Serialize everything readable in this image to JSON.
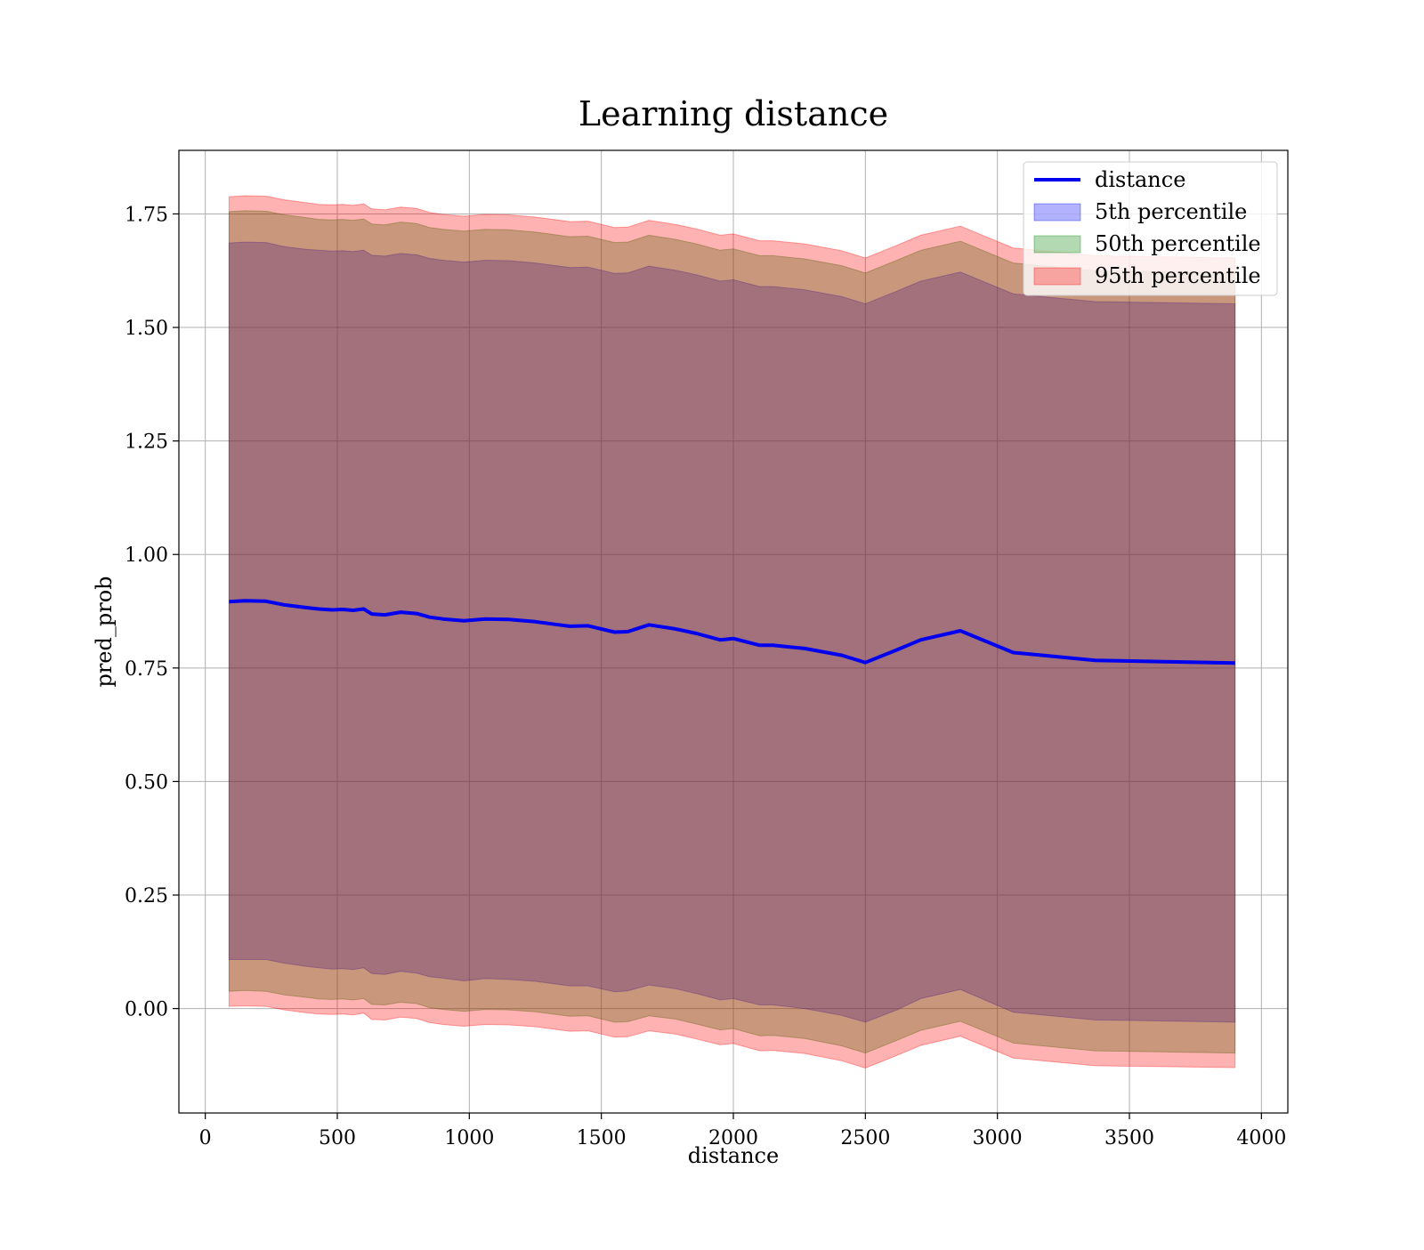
{
  "chart_data": {
    "type": "area",
    "title": "Learning distance",
    "xlabel": "distance",
    "ylabel": "pred_prob",
    "xlim": [
      -100,
      4100
    ],
    "ylim": [
      -0.23,
      1.89
    ],
    "xticks": [
      0,
      500,
      1000,
      1500,
      2000,
      2500,
      3000,
      3500,
      4000
    ],
    "xtick_labels": [
      "0",
      "500",
      "1000",
      "1500",
      "2000",
      "2500",
      "3000",
      "3500",
      "4000"
    ],
    "yticks": [
      0.0,
      0.25,
      0.5,
      0.75,
      1.0,
      1.25,
      1.5,
      1.75
    ],
    "ytick_labels": [
      "0.00",
      "0.25",
      "0.50",
      "0.75",
      "1.00",
      "1.25",
      "1.50",
      "1.75"
    ],
    "grid": true,
    "legend_position": "top-right",
    "x": [
      90,
      150,
      230,
      300,
      380,
      430,
      480,
      520,
      560,
      600,
      630,
      680,
      740,
      800,
      850,
      900,
      980,
      1060,
      1150,
      1250,
      1380,
      1450,
      1550,
      1600,
      1680,
      1780,
      1860,
      1950,
      2000,
      2100,
      2150,
      2270,
      2410,
      2500,
      2620,
      2710,
      2860,
      3060,
      3370,
      3900
    ],
    "series": [
      {
        "name": "distance",
        "kind": "line",
        "color": "#0000ee",
        "values": [
          0.896,
          0.898,
          0.897,
          0.889,
          0.883,
          0.88,
          0.878,
          0.879,
          0.877,
          0.88,
          0.869,
          0.867,
          0.873,
          0.87,
          0.862,
          0.858,
          0.854,
          0.858,
          0.857,
          0.852,
          0.842,
          0.843,
          0.829,
          0.83,
          0.845,
          0.836,
          0.826,
          0.812,
          0.815,
          0.8,
          0.8,
          0.793,
          0.778,
          0.762,
          0.79,
          0.812,
          0.832,
          0.784,
          0.767,
          0.761
        ]
      },
      {
        "name": "5th percentile",
        "kind": "band",
        "color": "#0000ff",
        "alpha": 0.3,
        "lower": [
          0.108,
          0.108,
          0.108,
          0.1,
          0.093,
          0.09,
          0.087,
          0.088,
          0.086,
          0.09,
          0.077,
          0.075,
          0.082,
          0.078,
          0.07,
          0.067,
          0.061,
          0.066,
          0.064,
          0.06,
          0.05,
          0.05,
          0.037,
          0.039,
          0.052,
          0.044,
          0.033,
          0.019,
          0.022,
          0.008,
          0.008,
          0.0,
          -0.015,
          -0.03,
          -0.003,
          0.022,
          0.042,
          -0.008,
          -0.025,
          -0.03
        ],
        "upper": [
          1.686,
          1.688,
          1.687,
          1.678,
          1.672,
          1.67,
          1.668,
          1.669,
          1.667,
          1.67,
          1.659,
          1.657,
          1.663,
          1.66,
          1.652,
          1.648,
          1.644,
          1.648,
          1.647,
          1.642,
          1.632,
          1.633,
          1.619,
          1.62,
          1.635,
          1.626,
          1.616,
          1.602,
          1.605,
          1.59,
          1.59,
          1.583,
          1.568,
          1.552,
          1.58,
          1.602,
          1.622,
          1.574,
          1.557,
          1.552
        ]
      },
      {
        "name": "50th percentile",
        "kind": "band",
        "color": "#008000",
        "alpha": 0.3,
        "lower": [
          0.038,
          0.04,
          0.038,
          0.03,
          0.025,
          0.021,
          0.02,
          0.021,
          0.019,
          0.022,
          0.009,
          0.008,
          0.014,
          0.011,
          0.002,
          -0.002,
          -0.006,
          -0.002,
          -0.003,
          -0.007,
          -0.017,
          -0.016,
          -0.03,
          -0.029,
          -0.016,
          -0.023,
          -0.034,
          -0.047,
          -0.044,
          -0.06,
          -0.059,
          -0.066,
          -0.082,
          -0.098,
          -0.07,
          -0.048,
          -0.028,
          -0.076,
          -0.093,
          -0.098
        ],
        "upper": [
          1.755,
          1.757,
          1.756,
          1.748,
          1.742,
          1.738,
          1.737,
          1.738,
          1.736,
          1.739,
          1.728,
          1.726,
          1.732,
          1.729,
          1.72,
          1.716,
          1.712,
          1.716,
          1.715,
          1.71,
          1.7,
          1.701,
          1.687,
          1.688,
          1.703,
          1.694,
          1.684,
          1.67,
          1.673,
          1.658,
          1.658,
          1.651,
          1.636,
          1.62,
          1.648,
          1.67,
          1.69,
          1.642,
          1.625,
          1.62
        ]
      },
      {
        "name": "95th percentile",
        "kind": "band",
        "color": "#ff0000",
        "alpha": 0.3,
        "lower": [
          0.005,
          0.006,
          0.005,
          -0.003,
          -0.009,
          -0.012,
          -0.013,
          -0.012,
          -0.014,
          -0.01,
          -0.024,
          -0.025,
          -0.019,
          -0.022,
          -0.031,
          -0.035,
          -0.039,
          -0.035,
          -0.036,
          -0.04,
          -0.05,
          -0.049,
          -0.063,
          -0.062,
          -0.049,
          -0.056,
          -0.067,
          -0.08,
          -0.077,
          -0.093,
          -0.092,
          -0.099,
          -0.115,
          -0.131,
          -0.103,
          -0.081,
          -0.061,
          -0.109,
          -0.126,
          -0.13
        ],
        "upper": [
          1.788,
          1.79,
          1.789,
          1.781,
          1.775,
          1.771,
          1.77,
          1.771,
          1.769,
          1.772,
          1.761,
          1.759,
          1.765,
          1.762,
          1.753,
          1.749,
          1.745,
          1.749,
          1.748,
          1.743,
          1.733,
          1.734,
          1.72,
          1.721,
          1.736,
          1.727,
          1.717,
          1.703,
          1.706,
          1.691,
          1.691,
          1.684,
          1.669,
          1.653,
          1.681,
          1.703,
          1.723,
          1.675,
          1.658,
          1.653
        ]
      }
    ]
  }
}
